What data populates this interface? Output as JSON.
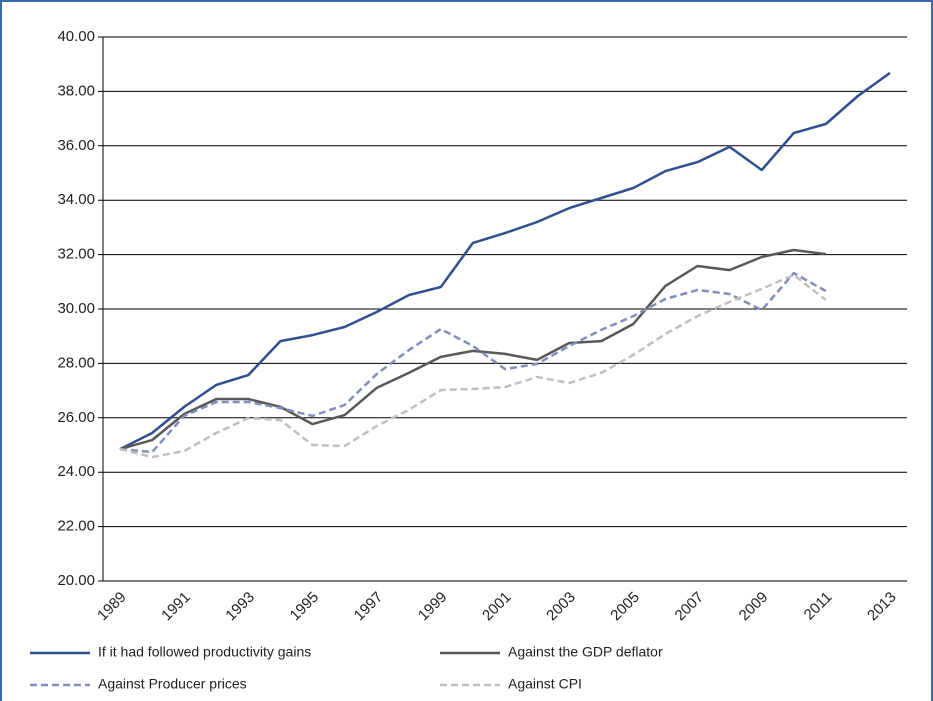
{
  "chart_data": {
    "type": "line",
    "categories": [
      "1989",
      null,
      "1991",
      null,
      "1993",
      null,
      "1995",
      null,
      "1997",
      null,
      "1999",
      null,
      "2001",
      null,
      "2003",
      null,
      "2005",
      null,
      "2007",
      null,
      "2009",
      null,
      "2011",
      null,
      "2013"
    ],
    "series": [
      {
        "name": "If it had followed productivity gains",
        "color": "#2f4f8f",
        "dash": false,
        "values": [
          24.85,
          25.44,
          26.4,
          27.21,
          27.57,
          28.82,
          29.04,
          29.34,
          29.89,
          30.51,
          30.81,
          32.43,
          32.79,
          33.2,
          33.71,
          34.08,
          34.45,
          35.07,
          35.4,
          35.96,
          35.11,
          36.47,
          36.8,
          37.83,
          38.68
        ]
      },
      {
        "name": "Against the GDP deflator",
        "color": "#595959",
        "dash": false,
        "values": [
          24.85,
          25.18,
          26.14,
          26.69,
          26.69,
          26.4,
          25.77,
          26.1,
          27.1,
          27.65,
          28.24,
          28.46,
          28.35,
          28.13,
          28.75,
          28.82,
          29.45,
          30.85,
          31.58,
          31.43,
          31.91,
          32.17,
          32.02,
          null,
          null
        ]
      },
      {
        "name": "Against Producer prices",
        "color": "#7f8fbb",
        "dash": true,
        "values": [
          24.85,
          24.74,
          26.07,
          26.58,
          26.58,
          26.36,
          26.07,
          26.47,
          27.61,
          28.49,
          29.26,
          28.64,
          27.79,
          27.98,
          28.64,
          29.23,
          29.74,
          30.37,
          30.7,
          30.55,
          29.96,
          31.32,
          30.66,
          null,
          null
        ]
      },
      {
        "name": "Against CPI",
        "color": "#bfbfbf",
        "dash": true,
        "values": [
          24.85,
          24.56,
          24.78,
          25.44,
          25.99,
          25.92,
          25.0,
          24.96,
          25.7,
          26.29,
          27.02,
          27.06,
          27.13,
          27.5,
          27.28,
          27.65,
          28.31,
          29.08,
          29.74,
          30.26,
          30.74,
          31.25,
          30.33,
          null,
          null
        ]
      }
    ],
    "ylim": [
      20,
      40
    ],
    "yticks": [
      {
        "value": 20,
        "label": "20.00"
      },
      {
        "value": 22,
        "label": "22.00"
      },
      {
        "value": 24,
        "label": "24.00"
      },
      {
        "value": 26,
        "label": "26.00"
      },
      {
        "value": 28,
        "label": "28.00"
      },
      {
        "value": 30,
        "label": "30.00"
      },
      {
        "value": 32,
        "label": "32.00"
      },
      {
        "value": 34,
        "label": "34.00"
      },
      {
        "value": 36,
        "label": "36.00"
      },
      {
        "value": 38,
        "label": "38.00"
      },
      {
        "value": 40,
        "label": "40.00"
      }
    ],
    "grid": true
  }
}
